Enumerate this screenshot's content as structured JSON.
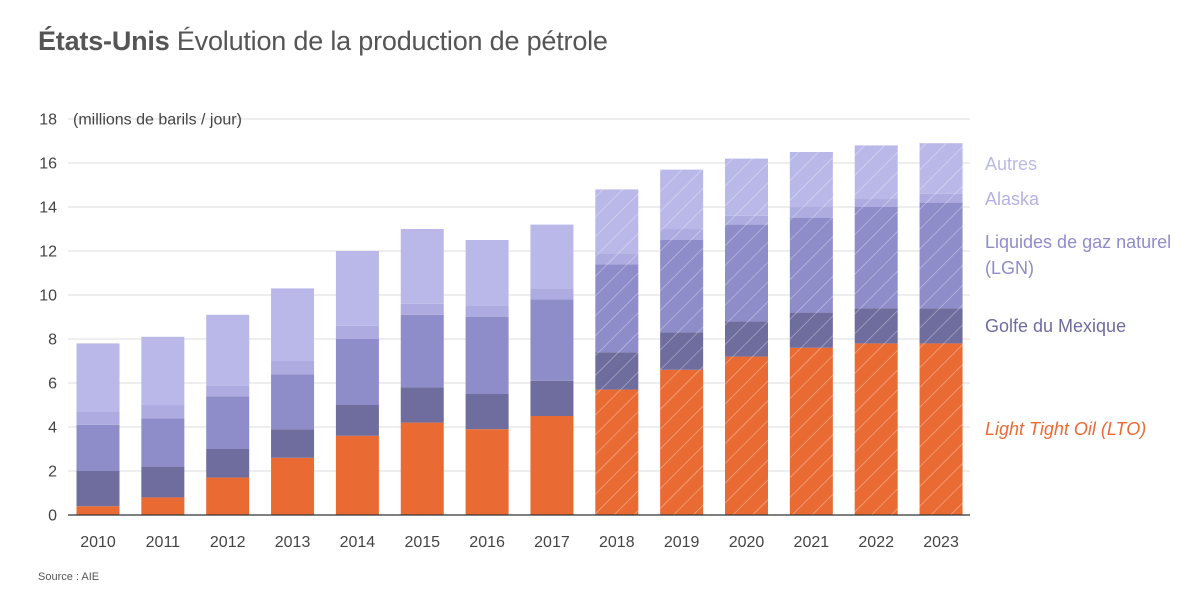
{
  "title": {
    "bold": "États-Unis",
    "rest": "Évolution de la production de pétrole"
  },
  "source": "Source : AIE",
  "chart_data": {
    "type": "bar",
    "stacked": true,
    "unit_label": "(millions de barils / jour)",
    "categories": [
      "2010",
      "2011",
      "2012",
      "2013",
      "2014",
      "2015",
      "2016",
      "2017",
      "2018",
      "2019",
      "2020",
      "2021",
      "2022",
      "2023"
    ],
    "hatched_from": "2018",
    "ylim": [
      0,
      18
    ],
    "yticks": [
      0,
      2,
      4,
      6,
      8,
      10,
      12,
      14,
      16,
      18
    ],
    "grid": true,
    "series": [
      {
        "name": "Light Tight Oil (LTO)",
        "color": "#e96b33",
        "legend_color": "#e96b33",
        "italic": true,
        "values": [
          0.4,
          0.8,
          1.7,
          2.6,
          3.6,
          4.2,
          3.9,
          4.5,
          5.7,
          6.6,
          7.2,
          7.6,
          7.8,
          7.8
        ]
      },
      {
        "name": "Golfe du Mexique",
        "color": "#6f6c9e",
        "legend_color": "#6f6c9e",
        "italic": false,
        "values": [
          1.6,
          1.4,
          1.3,
          1.3,
          1.4,
          1.6,
          1.6,
          1.6,
          1.7,
          1.7,
          1.6,
          1.6,
          1.6,
          1.6
        ]
      },
      {
        "name": "Liquides de gaz naturel (LGN)",
        "legend_lines": [
          "Liquides de gaz naturel",
          "(LGN)"
        ],
        "color": "#8f8cca",
        "legend_color": "#8f8cca",
        "italic": false,
        "values": [
          2.1,
          2.2,
          2.4,
          2.5,
          3.0,
          3.3,
          3.5,
          3.7,
          4.0,
          4.2,
          4.4,
          4.3,
          4.6,
          4.8
        ]
      },
      {
        "name": "Alaska",
        "color": "#aeabe0",
        "legend_color": "#b4b1e4",
        "italic": false,
        "values": [
          0.6,
          0.6,
          0.5,
          0.6,
          0.6,
          0.5,
          0.5,
          0.5,
          0.5,
          0.5,
          0.4,
          0.5,
          0.4,
          0.4
        ]
      },
      {
        "name": "Autres",
        "color": "#bab8e8",
        "legend_color": "#bab8e8",
        "italic": false,
        "values": [
          3.1,
          3.1,
          3.2,
          3.3,
          3.4,
          3.4,
          3.0,
          2.9,
          2.9,
          2.7,
          2.6,
          2.5,
          2.4,
          2.3
        ]
      }
    ]
  }
}
